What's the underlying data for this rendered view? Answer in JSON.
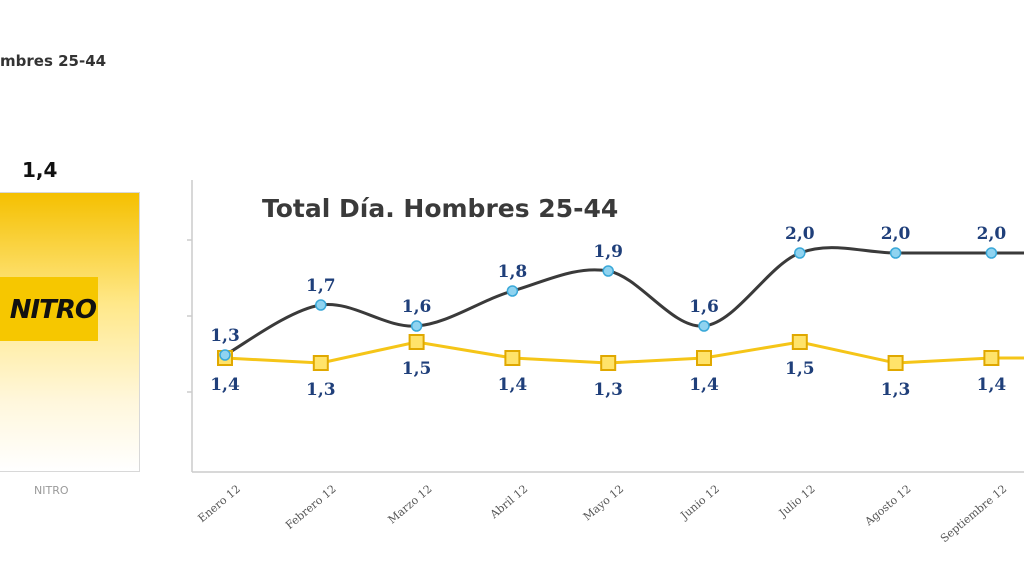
{
  "header": {
    "fragment": "mbres 25-44"
  },
  "nitro": {
    "value": "1,4",
    "logo_text": "NITRO",
    "caption": "NITRO"
  },
  "chart_data": {
    "type": "line",
    "title": "Total Día. Hombres 25-44",
    "categories": [
      "Enero 12",
      "Febrero 12",
      "Marzo 12",
      "Abril 12",
      "Mayo 12",
      "Junio 12",
      "Julio 12",
      "Agosto 12",
      "Septiembre 12"
    ],
    "series": [
      {
        "values": [
          1.3,
          1.7,
          1.6,
          1.8,
          1.9,
          1.6,
          2.0,
          2.0,
          2.0
        ],
        "labels": [
          "1,3",
          "1,7",
          "1,6",
          "1,8",
          "1,9",
          "1,6",
          "2,0",
          "2,0",
          "2,0"
        ],
        "line_color": "#3a3a3a",
        "marker_color": "#8fd3f0"
      },
      {
        "values": [
          1.4,
          1.3,
          1.5,
          1.4,
          1.3,
          1.4,
          1.5,
          1.3,
          1.4
        ],
        "labels": [
          "1,4",
          "1,3",
          "1,5",
          "1,4",
          "1,3",
          "1,4",
          "1,5",
          "1,3",
          "1,4"
        ],
        "line_color": "#f5c518",
        "marker_color": "#ffe36a"
      }
    ],
    "legend": "none",
    "grid": false
  }
}
